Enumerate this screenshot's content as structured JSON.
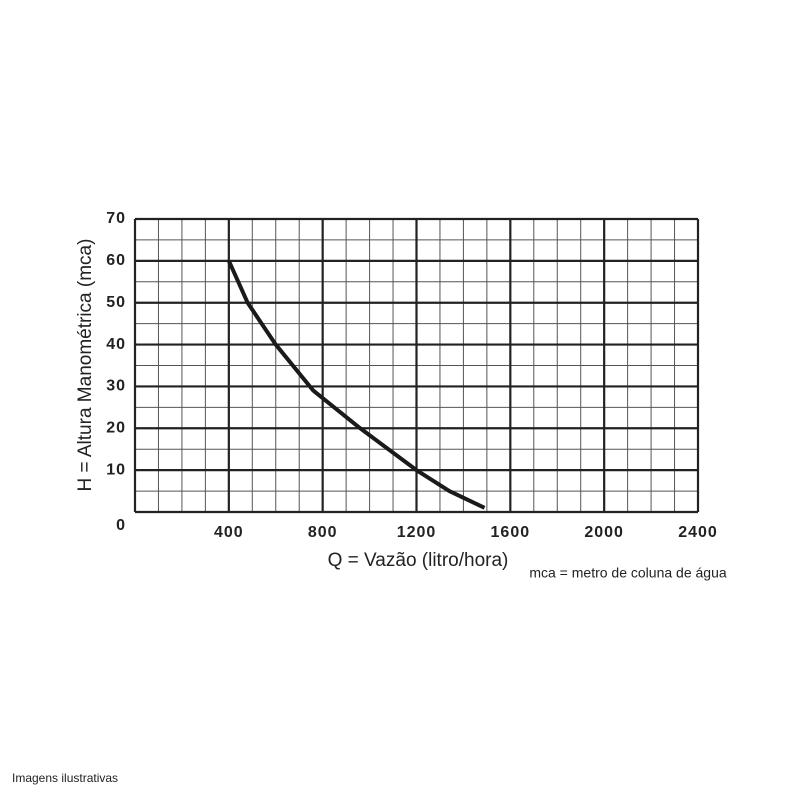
{
  "chart_data": {
    "type": "line",
    "y_label": "H = Altura Manométrica (mca)",
    "x_label": "Q = Vazão (litro/hora)",
    "note": "mca = metro de coluna de água",
    "x": [
      400,
      480,
      600,
      760,
      960,
      1200,
      1340,
      1490
    ],
    "series": [
      {
        "color": "#1a1a1a",
        "values": [
          60,
          50,
          40,
          29,
          20,
          10,
          5,
          1
        ]
      }
    ],
    "xlim": [
      0,
      2400
    ],
    "ylim": [
      0,
      70
    ],
    "xticks": [
      400,
      800,
      1200,
      1600,
      2000,
      2400
    ],
    "yticks": [
      0,
      10,
      20,
      30,
      40,
      50,
      60,
      70
    ],
    "grid": true
  },
  "footer": "Imagens ilustrativas"
}
